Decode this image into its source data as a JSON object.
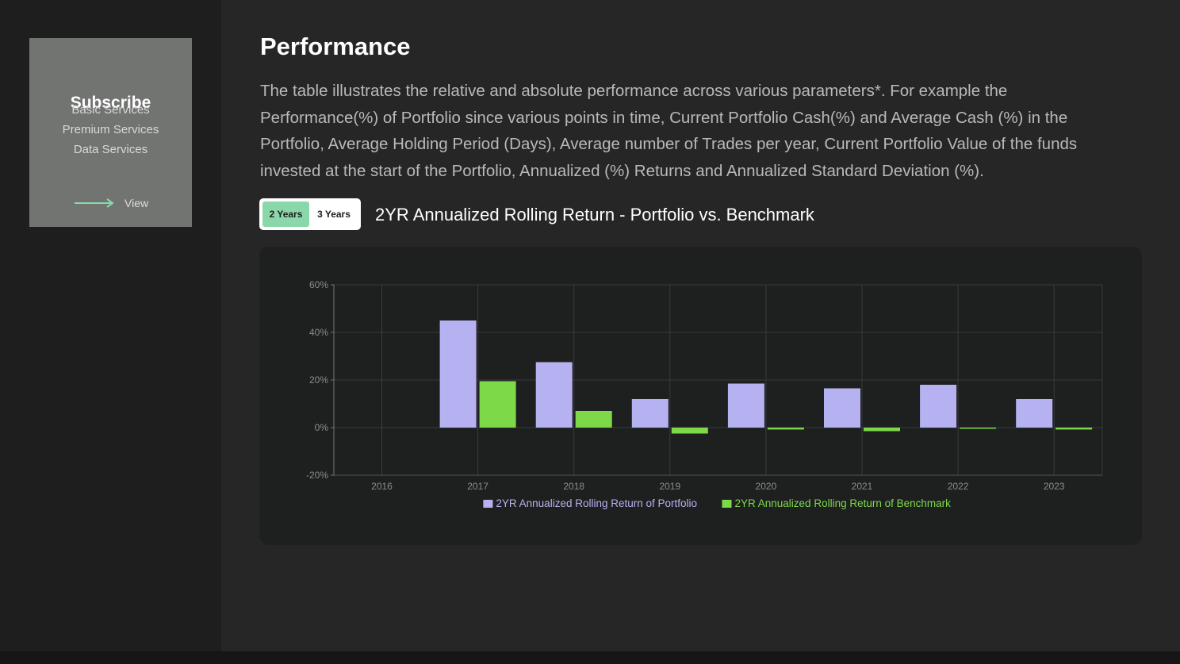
{
  "sidebar": {
    "card": {
      "title": "Subscribe",
      "services": [
        "Basic Services",
        "Premium Services",
        "Data Services"
      ],
      "view_label": "View",
      "arrow_icon": "arrow-right-icon"
    }
  },
  "main": {
    "title": "Performance",
    "description": "The table illustrates the relative and absolute performance across various parameters*. For example the Performance(%) of Portfolio since various points in time, Current Portfolio Cash(%) and Average Cash (%) in the Portfolio, Average Holding Period (Days), Average number of Trades per year, Current Portfolio Value of the funds invested at the start of the Portfolio, Annualized (%) Returns and Annualized Standard Deviation (%).",
    "toggle": {
      "options": [
        "2 Years",
        "3 Years"
      ],
      "selected": "2 Years",
      "active_color": "#8ad8a9"
    },
    "chart_title": "2YR Annualized Rolling Return - Portfolio vs. Benchmark"
  },
  "chart_data": {
    "type": "bar",
    "categories": [
      "2016",
      "2017",
      "2018",
      "2019",
      "2020",
      "2021",
      "2022",
      "2023"
    ],
    "y_ticks": [
      "60%",
      "40%",
      "20%",
      "0%",
      "-20%"
    ],
    "ylim": [
      -20,
      60
    ],
    "grid": true,
    "legend_position": "bottom-center",
    "series": [
      {
        "name": "2YR Annualized Rolling Return of Portfolio",
        "color": "#b6b2f2",
        "values": [
          null,
          45,
          27.5,
          12,
          18.5,
          16.5,
          18,
          12
        ]
      },
      {
        "name": "2YR Annualized Rolling Return of Benchmark",
        "color": "#7ed949",
        "values": [
          null,
          19.5,
          7,
          -2.5,
          -0.8,
          -1.5,
          -0.5,
          -0.8
        ]
      }
    ]
  }
}
